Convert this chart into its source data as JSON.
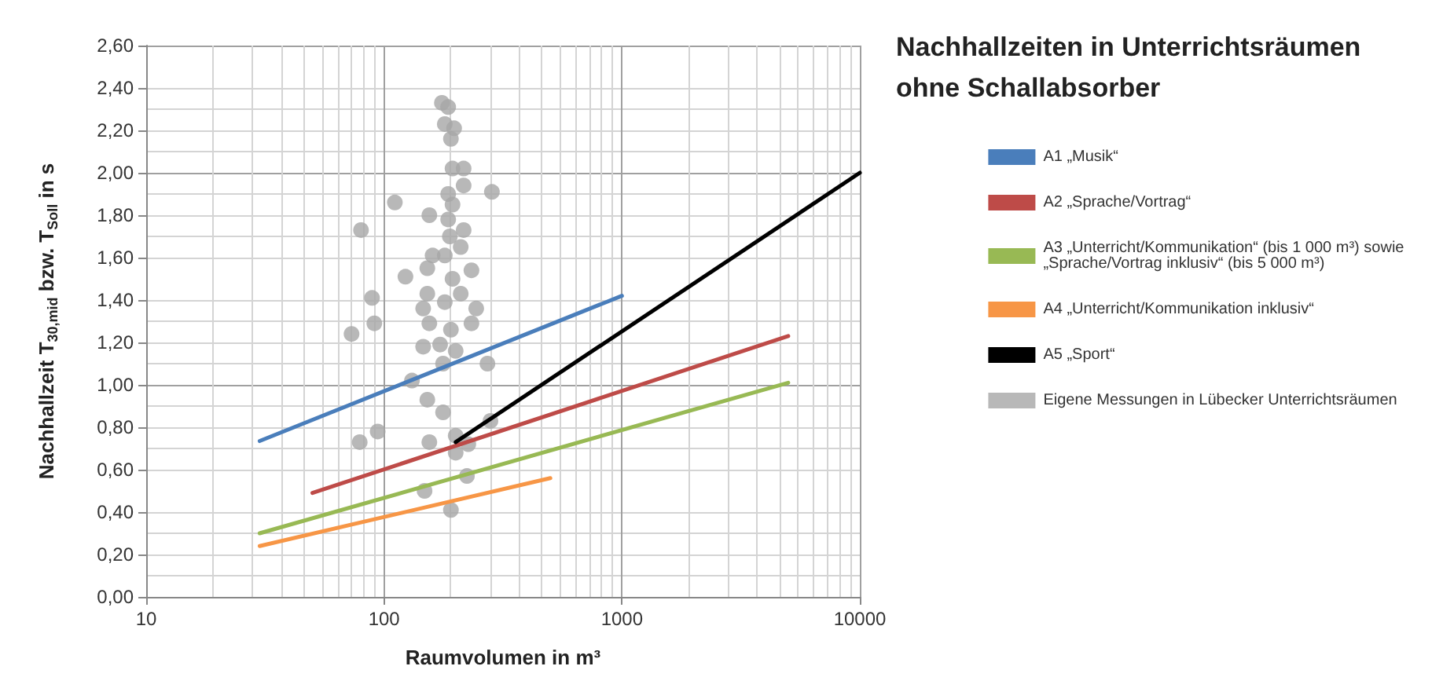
{
  "chart_data": {
    "type": "line",
    "title": "Nachhallzeiten in Unterrichtsräumen ohne Schallabsorber",
    "xlabel": "Raumvolumen in m³",
    "ylabel": "Nachhallzeit T$_{30,mid}$ bzw. T$_{Soll}$ in s",
    "log": "x",
    "grid": true,
    "legend": "right",
    "xlim": [
      10,
      10000
    ],
    "xticks": [
      10,
      100,
      1000,
      10000
    ],
    "ylim": [
      0,
      2.6
    ],
    "yticks": [
      {
        "value": 0,
        "label": "0,00"
      },
      {
        "value": 0.2,
        "label": "0,20"
      },
      {
        "value": 0.4,
        "label": "0,40"
      },
      {
        "value": 0.6,
        "label": "0,60"
      },
      {
        "value": 0.8,
        "label": "0,80"
      },
      {
        "value": 1,
        "label": "1,00"
      },
      {
        "value": 1.2,
        "label": "1,20"
      },
      {
        "value": 1.4,
        "label": "1,40"
      },
      {
        "value": 1.6,
        "label": "1,60"
      },
      {
        "value": 1.8,
        "label": "1,80"
      },
      {
        "value": 2,
        "label": "2,00"
      },
      {
        "value": 2.2,
        "label": "2,20"
      },
      {
        "value": 2.4,
        "label": "2,40"
      },
      {
        "value": 2.6,
        "label": "2,60"
      }
    ],
    "series": [
      {
        "name": "A1 „Musik“",
        "color": "#4a7ebb",
        "x": [
          30,
          1000
        ],
        "values": [
          0.735,
          1.42
        ]
      },
      {
        "name": "A2 „Sprache/Vortrag“",
        "color": "#be4b48",
        "x": [
          50,
          5000
        ],
        "values": [
          0.49,
          1.23
        ]
      },
      {
        "name": "A3 „Unterricht/Kommunikation“ (bis 1 000 m³) sowie „Sprache/Vortrag inklusiv“ (bis 5 000 m³)",
        "color": "#98b954",
        "x": [
          30,
          5000
        ],
        "values": [
          0.3,
          1.01
        ]
      },
      {
        "name": "A4 „Unterricht/Kommunikation inklusiv“",
        "color": "#f79646",
        "x": [
          30,
          500
        ],
        "values": [
          0.24,
          0.56
        ]
      },
      {
        "name": "A5 „Sport“",
        "color": "#000000",
        "x": [
          200,
          10000
        ],
        "values": [
          0.73,
          2.0
        ]
      },
      {
        "name": "Eigene Messungen in Lübecker Unterrichtsräumen",
        "type": "scatter",
        "color": "#a6a6a6",
        "x": [
          175,
          186,
          180,
          197,
          191,
          194,
          216,
          216,
          284,
          186,
          194,
          111,
          155,
          186,
          80,
          216,
          189,
          210,
          160,
          180,
          152,
          233,
          123,
          194,
          152,
          89,
          210,
          146,
          244,
          180,
          91,
          233,
          155,
          73,
          191,
          146,
          172,
          200,
          272,
          177,
          131,
          152,
          177,
          79,
          94,
          155,
          200,
          226,
          200,
          280,
          223,
          148,
          191
        ],
        "values": [
          2.33,
          2.31,
          2.23,
          2.21,
          2.16,
          2.02,
          2.02,
          1.94,
          1.91,
          1.9,
          1.85,
          1.86,
          1.8,
          1.78,
          1.73,
          1.73,
          1.7,
          1.65,
          1.61,
          1.61,
          1.55,
          1.54,
          1.51,
          1.5,
          1.43,
          1.41,
          1.43,
          1.36,
          1.36,
          1.39,
          1.29,
          1.29,
          1.29,
          1.24,
          1.26,
          1.18,
          1.19,
          1.16,
          1.1,
          1.1,
          1.02,
          0.93,
          0.87,
          0.73,
          0.78,
          0.73,
          0.76,
          0.72,
          0.68,
          0.83,
          0.57,
          0.5,
          0.41
        ]
      }
    ]
  }
}
